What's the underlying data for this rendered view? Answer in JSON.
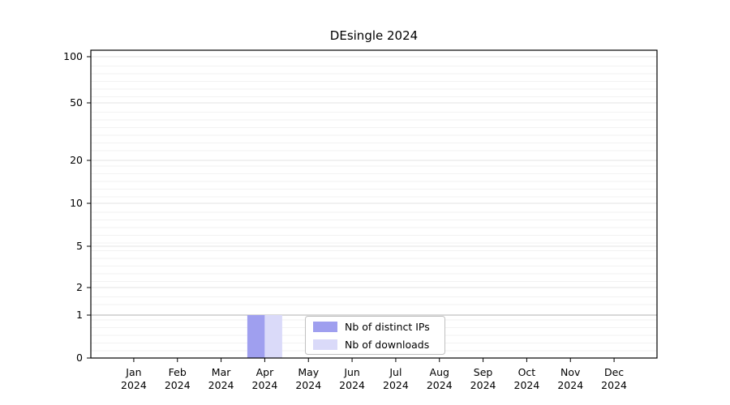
{
  "figure": {
    "title": "DEsingle 2024",
    "background": "#ffffff"
  },
  "chart_data": {
    "type": "bar",
    "title": "DEsingle 2024",
    "categories": [
      {
        "label": "Jan",
        "year": "2024"
      },
      {
        "label": "Feb",
        "year": "2024"
      },
      {
        "label": "Mar",
        "year": "2024"
      },
      {
        "label": "Apr",
        "year": "2024"
      },
      {
        "label": "May",
        "year": "2024"
      },
      {
        "label": "Jun",
        "year": "2024"
      },
      {
        "label": "Jul",
        "year": "2024"
      },
      {
        "label": "Aug",
        "year": "2024"
      },
      {
        "label": "Sep",
        "year": "2024"
      },
      {
        "label": "Oct",
        "year": "2024"
      },
      {
        "label": "Nov",
        "year": "2024"
      },
      {
        "label": "Dec",
        "year": "2024"
      }
    ],
    "series": [
      {
        "name": "Nb of distinct IPs",
        "color": "#9f9fef",
        "values": [
          0,
          0,
          0,
          1,
          0,
          0,
          0,
          0,
          0,
          0,
          0,
          0
        ]
      },
      {
        "name": "Nb of downloads",
        "color": "#dadaf9",
        "values": [
          0,
          0,
          0,
          1,
          0,
          0,
          0,
          0,
          0,
          0,
          0,
          0
        ]
      }
    ],
    "yticks": [
      0,
      1,
      2,
      5,
      10,
      20,
      50,
      100
    ],
    "ylim": [
      0,
      100
    ],
    "yscale": "log-like",
    "xlabel": "",
    "ylabel": "",
    "grid": true,
    "legend": {
      "position": "bottom-center"
    }
  }
}
